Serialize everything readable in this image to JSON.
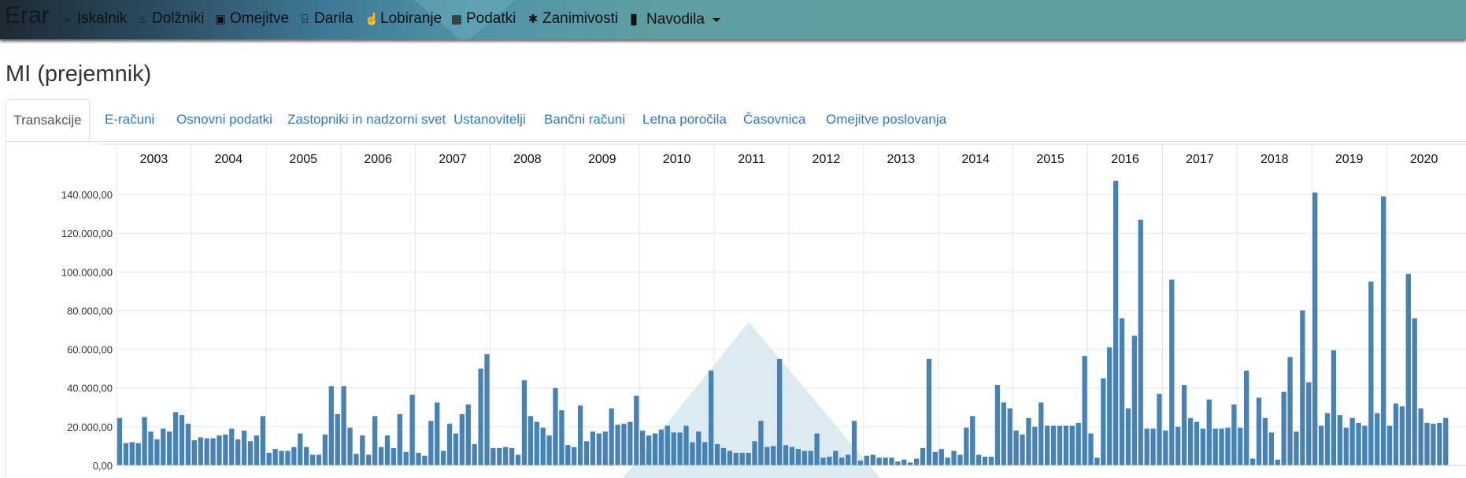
{
  "nav": {
    "brand": "Erar",
    "items": [
      {
        "label": "Iskalnik",
        "icon": "search-icon",
        "glyph": "⌕"
      },
      {
        "label": "Dolžniki",
        "icon": "fire-icon",
        "glyph": "♨"
      },
      {
        "label": "Omejitve",
        "icon": "briefcase-icon",
        "glyph": "▣"
      },
      {
        "label": "Darila",
        "icon": "gift-icon",
        "glyph": "⌸"
      },
      {
        "label": "Lobiranje",
        "icon": "hand-icon",
        "glyph": "☝"
      },
      {
        "label": "Podatki",
        "icon": "grid-icon",
        "glyph": "▦"
      },
      {
        "label": "Zanimivosti",
        "icon": "asterisk-icon",
        "glyph": "✱"
      },
      {
        "label": "Navodila",
        "icon": "book-icon",
        "glyph": "▮"
      }
    ]
  },
  "page_title": "MI (prejemnik)",
  "tabs": [
    "Transakcije",
    "E-računi",
    "Osnovni podatki",
    "Zastopniki in nadzorni svet",
    "Ustanovitelji",
    "Bančni računi",
    "Letna poročila",
    "Časovnica",
    "Omejitve poslovanja"
  ],
  "active_tab": "Transakcije",
  "colors": {
    "bar": "#4682b4",
    "grid": "#e6e6e6",
    "active_tab_text": "#555555",
    "link": "#337ab7"
  },
  "chart_data": {
    "type": "bar",
    "x_axis_position": "top",
    "x_labels": [
      "2003",
      "2004",
      "2005",
      "2006",
      "2007",
      "2008",
      "2009",
      "2010",
      "2011",
      "2012",
      "2013",
      "2014",
      "2015",
      "2016",
      "2017",
      "2018",
      "2019",
      "2020"
    ],
    "y_tick_labels": [
      "0,00",
      "20.000,00",
      "40.000,00",
      "60.000,00",
      "80.000,00",
      "100.000,00",
      "120.000,00",
      "140.000,00"
    ],
    "ylim": [
      0,
      150000
    ],
    "grid": true,
    "bars_per_year": 12,
    "values": [
      24500,
      11500,
      12000,
      11500,
      25000,
      17500,
      13500,
      19000,
      17500,
      27500,
      26000,
      21500,
      13000,
      14500,
      14000,
      14000,
      15500,
      16000,
      19000,
      13500,
      18000,
      12500,
      15500,
      25500,
      6500,
      8500,
      7500,
      7500,
      9500,
      16500,
      9500,
      5500,
      5500,
      16000,
      41000,
      26500,
      41000,
      19500,
      6000,
      15500,
      5500,
      25500,
      9500,
      15500,
      9000,
      26500,
      7000,
      36500,
      6500,
      5000,
      23000,
      32500,
      7500,
      21500,
      16500,
      26500,
      31500,
      11000,
      50000,
      57500,
      9000,
      9000,
      9500,
      9000,
      5500,
      44000,
      25500,
      22500,
      19500,
      15500,
      40000,
      28500,
      10500,
      9500,
      31000,
      12500,
      17500,
      16500,
      17500,
      29500,
      21000,
      21500,
      22500,
      36000,
      18000,
      15500,
      16500,
      18500,
      20500,
      17000,
      17000,
      20500,
      12000,
      17500,
      12000,
      49000,
      11000,
      9000,
      7500,
      6500,
      6500,
      6500,
      12500,
      23000,
      9500,
      10000,
      55000,
      10500,
      9500,
      8500,
      7500,
      7500,
      16500,
      4000,
      4500,
      7500,
      4000,
      5500,
      23000,
      2500,
      5000,
      5500,
      4000,
      4000,
      4000,
      2000,
      3000,
      1500,
      3500,
      9000,
      55000,
      7000,
      8500,
      4000,
      7500,
      5500,
      19500,
      25500,
      5500,
      4500,
      4500,
      41500,
      32500,
      29500,
      18000,
      16000,
      24500,
      20000,
      32500,
      20500,
      20500,
      20500,
      20500,
      20500,
      22000,
      56500,
      16500,
      4000,
      45000,
      61000,
      147000,
      76000,
      29500,
      67000,
      127000,
      19000,
      19000,
      37000,
      18000,
      96000,
      20000,
      41500,
      24500,
      22500,
      19000,
      34000,
      19000,
      19000,
      19500,
      31500,
      19500,
      49000,
      3500,
      35000,
      24500,
      17000,
      3000,
      38000,
      56000,
      17500,
      80000,
      43000,
      141000,
      20500,
      27000,
      59500,
      26000,
      19500,
      24500,
      22000,
      20500,
      95000,
      27000,
      139000,
      20500,
      32000,
      30500,
      99000,
      76000,
      29500,
      22000,
      21500,
      22000,
      24500
    ]
  }
}
